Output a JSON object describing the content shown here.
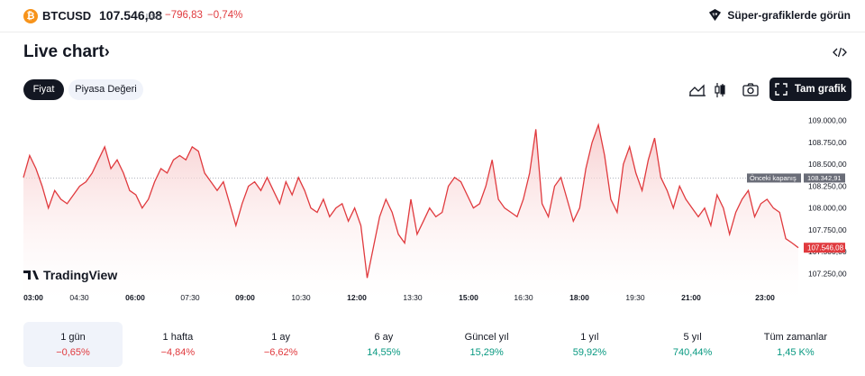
{
  "header": {
    "coin_icon_name": "bitcoin-icon",
    "coin_icon_glyph": "₿",
    "symbol": "BTCUSD",
    "price": "107.546,08",
    "currency": "USD",
    "change_abs": "−796,83",
    "change_pct": "−0,74%",
    "super_link_label": "Süper-grafiklerde görün"
  },
  "section": {
    "title": "Live chart",
    "chevron": "›"
  },
  "tabs": [
    {
      "label": "Fiyat",
      "active": true
    },
    {
      "label": "Piyasa Değeri",
      "active": false
    }
  ],
  "toolbar": {
    "area_icon": "area-chart-icon",
    "candles_icon": "candlestick-icon",
    "camera_icon": "camera-icon",
    "full_chart_label": "Tam grafik"
  },
  "watermark": "TradingView",
  "colors": {
    "line": "#e03a3e",
    "fill_top": "#f7c8c9",
    "negative": "#e03a3e",
    "positive": "#089981"
  },
  "chart_data": {
    "type": "area",
    "x_ticks": [
      {
        "label": "03:00",
        "bold": true
      },
      {
        "label": "04:30",
        "bold": false
      },
      {
        "label": "06:00",
        "bold": true
      },
      {
        "label": "07:30",
        "bold": false
      },
      {
        "label": "09:00",
        "bold": true
      },
      {
        "label": "10:30",
        "bold": false
      },
      {
        "label": "12:00",
        "bold": true
      },
      {
        "label": "13:30",
        "bold": false
      },
      {
        "label": "15:00",
        "bold": true
      },
      {
        "label": "16:30",
        "bold": false
      },
      {
        "label": "18:00",
        "bold": true
      },
      {
        "label": "19:30",
        "bold": false
      },
      {
        "label": "21:00",
        "bold": true
      },
      {
        "label": "23:00",
        "bold": true
      }
    ],
    "y_ticks": [
      {
        "value": 109000,
        "label": "109.000,00"
      },
      {
        "value": 108750,
        "label": "108.750,00"
      },
      {
        "value": 108500,
        "label": "108.500,00"
      },
      {
        "value": 108250,
        "label": "108.250,00"
      },
      {
        "value": 108000,
        "label": "108.000,00"
      },
      {
        "value": 107750,
        "label": "107.750,00"
      },
      {
        "value": 107500,
        "label": "107.500,00"
      },
      {
        "value": 107250,
        "label": "107.250,00"
      }
    ],
    "ylim": [
      107100,
      109100
    ],
    "previous_close": {
      "label": "Önceki kapanış",
      "value": 108342.91,
      "value_label": "108.342,91"
    },
    "last_price": {
      "value": 107546.08,
      "label": "107.546,08"
    },
    "series": [
      {
        "values": [
          108350,
          108600,
          108450,
          108250,
          108000,
          108200,
          108100,
          108050,
          108150,
          108250,
          108300,
          108400,
          108550,
          108700,
          108450,
          108550,
          108400,
          108200,
          108150,
          108000,
          108100,
          108300,
          108450,
          108400,
          108550,
          108600,
          108550,
          108700,
          108650,
          108400,
          108300,
          108200,
          108300,
          108050,
          107800,
          108050,
          108250,
          108300,
          108200,
          108350,
          108200,
          108050,
          108300,
          108150,
          108350,
          108200,
          108000,
          107950,
          108100,
          107900,
          108000,
          108050,
          107850,
          108000,
          107800,
          107200,
          107550,
          107900,
          108100,
          107950,
          107700,
          107600,
          108100,
          107700,
          107850,
          108000,
          107900,
          107950,
          108250,
          108350,
          108300,
          108150,
          108000,
          108050,
          108250,
          108550,
          108100,
          108000,
          107950,
          107900,
          108100,
          108400,
          108900,
          108050,
          107900,
          108250,
          108350,
          108100,
          107850,
          108000,
          108450,
          108750,
          108950,
          108600,
          108100,
          107950,
          108500,
          108700,
          108400,
          108200,
          108550,
          108800,
          108350,
          108200,
          108000,
          108250,
          108100,
          108000,
          107900,
          108000,
          107800,
          108150,
          108000,
          107700,
          107950,
          108100,
          108200,
          107900,
          108050,
          108100,
          108000,
          107950,
          107650,
          107600,
          107546.08
        ]
      }
    ]
  },
  "periods": [
    {
      "label": "1 gün",
      "value": "−0,65%",
      "trend": "neg",
      "selected": true
    },
    {
      "label": "1 hafta",
      "value": "−4,84%",
      "trend": "neg",
      "selected": false
    },
    {
      "label": "1 ay",
      "value": "−6,62%",
      "trend": "neg",
      "selected": false
    },
    {
      "label": "6 ay",
      "value": "14,55%",
      "trend": "pos",
      "selected": false
    },
    {
      "label": "Güncel yıl",
      "value": "15,29%",
      "trend": "pos",
      "selected": false
    },
    {
      "label": "1 yıl",
      "value": "59,92%",
      "trend": "pos",
      "selected": false
    },
    {
      "label": "5 yıl",
      "value": "740,44%",
      "trend": "pos",
      "selected": false
    },
    {
      "label": "Tüm zamanlar",
      "value": "1,45 K%",
      "trend": "pos",
      "selected": false
    }
  ]
}
